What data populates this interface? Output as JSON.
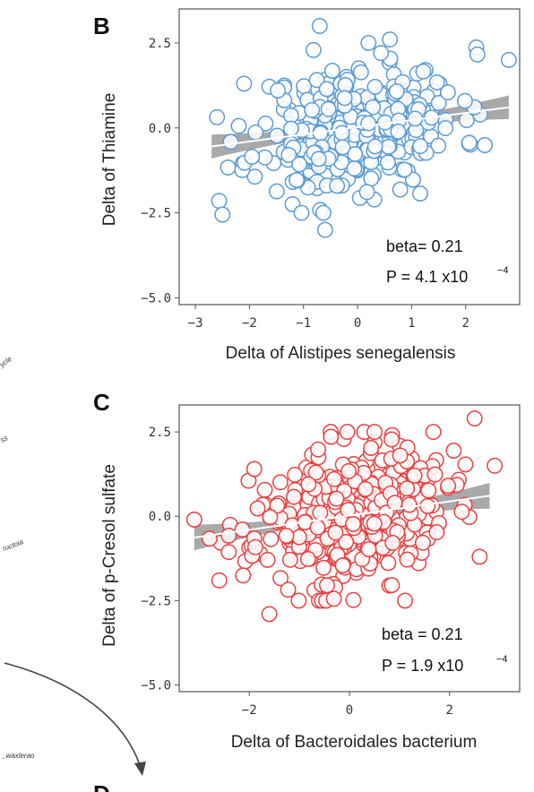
{
  "fragments": {
    "left_labels": [
      "ycle",
      "ss",
      "ructoia",
      "_waxlerao"
    ],
    "panel_d_letter": "D"
  },
  "chart_data": [
    {
      "type": "scatter",
      "panel": "B",
      "title": "",
      "xlabel": "Delta of Alistipes senegalensis",
      "ylabel": "Delta of Thiamine",
      "xlim": [
        -3.3,
        3.0
      ],
      "ylim": [
        -5.2,
        3.5
      ],
      "xticks": [
        -3,
        -2,
        -1,
        0,
        1,
        2
      ],
      "yticks": [
        2.5,
        0.0,
        -2.5,
        -5.0
      ],
      "xtick_labels": [
        "−3",
        "−2",
        "−1",
        "0",
        "1",
        "2"
      ],
      "ytick_labels": [
        "2.5",
        "0.0",
        "−2.5",
        "−5.0"
      ],
      "grid": false,
      "point_color": "#5b9bd5",
      "fit_line": {
        "intercept": 0.02,
        "slope": 0.21,
        "x_range": [
          -2.7,
          2.8
        ],
        "color": "#ffffff",
        "band_color": "#9a9a9a"
      },
      "stat_lines": [
        "beta= 0.21",
        "P = 4.1 x10"
      ],
      "stat_exponent": "−4",
      "n_points": 300,
      "x_spread": [
        -2.6,
        2.8
      ],
      "y_noise_sd": 0.95,
      "seed": 11,
      "outliers": [
        [
          -0.7,
          3.0
        ],
        [
          -2.5,
          -2.55
        ],
        [
          -0.6,
          -3.0
        ],
        [
          2.8,
          2.0
        ],
        [
          0.6,
          2.6
        ],
        [
          -2.1,
          1.3
        ]
      ]
    },
    {
      "type": "scatter",
      "panel": "C",
      "title": "",
      "xlabel": "Delta of Bacteroidales bacterium",
      "ylabel": "Delta of p-Cresol sulfate",
      "xlim": [
        -3.4,
        3.4
      ],
      "ylim": [
        -5.2,
        3.3
      ],
      "xticks": [
        -2,
        0,
        2
      ],
      "yticks": [
        2.5,
        0.0,
        -2.5,
        -5.0
      ],
      "xtick_labels": [
        "−2",
        "0",
        "2"
      ],
      "ytick_labels": [
        "2.5",
        "0.0",
        "−2.5",
        "−5.0"
      ],
      "grid": false,
      "point_color": "#e84040",
      "fit_line": {
        "intercept": 0.02,
        "slope": 0.21,
        "x_range": [
          -3.1,
          2.8
        ],
        "color": "#ffffff",
        "band_color": "#9a9a9a"
      },
      "stat_lines": [
        "beta = 0.21",
        "P = 1.9 x10"
      ],
      "stat_exponent": "−4",
      "n_points": 380,
      "x_spread": [
        -3.1,
        3.0
      ],
      "y_noise_sd": 1.0,
      "seed": 23,
      "outliers": [
        [
          -3.1,
          -0.1
        ],
        [
          -2.6,
          -1.9
        ],
        [
          -1.6,
          -2.9
        ],
        [
          2.5,
          2.9
        ],
        [
          2.9,
          1.5
        ],
        [
          2.6,
          -1.2
        ],
        [
          -1.9,
          1.4
        ]
      ]
    }
  ]
}
